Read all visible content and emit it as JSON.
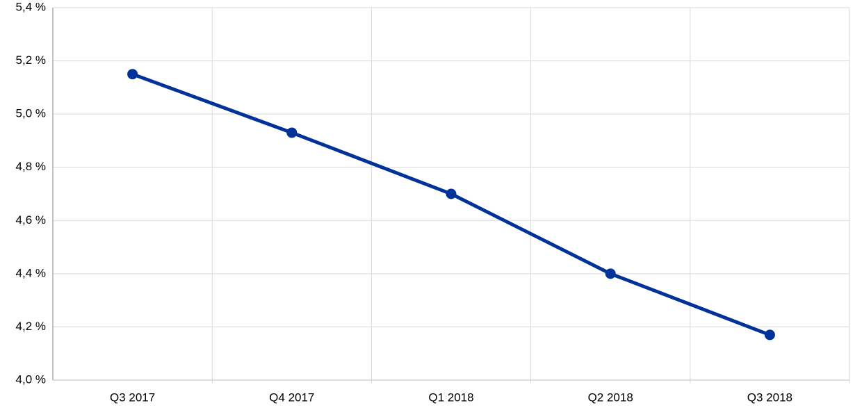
{
  "chart_data": {
    "type": "line",
    "categories": [
      "Q3 2017",
      "Q4 2017",
      "Q1 2018",
      "Q2 2018",
      "Q3 2018"
    ],
    "values": [
      5.15,
      4.93,
      4.7,
      4.4,
      4.17
    ],
    "color": "#003299",
    "ylim": [
      4.0,
      5.4
    ],
    "yticks": [
      {
        "value": 4.0,
        "label": "4,0 %"
      },
      {
        "value": 4.2,
        "label": "4,2 %"
      },
      {
        "value": 4.4,
        "label": "4,4 %"
      },
      {
        "value": 4.6,
        "label": "4,6 %"
      },
      {
        "value": 4.8,
        "label": "4,8 %"
      },
      {
        "value": 5.0,
        "label": "5,0 %"
      },
      {
        "value": 5.2,
        "label": "5,2 %"
      },
      {
        "value": 5.4,
        "label": "5,4 %"
      }
    ],
    "grid": true
  }
}
